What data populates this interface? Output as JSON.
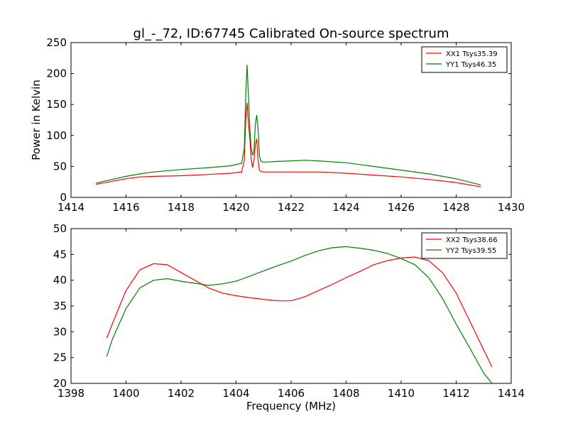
{
  "title": "gl_-_72, ID:67745 Calibrated On-source spectrum",
  "chart_data": [
    {
      "type": "line",
      "ylabel": "Power in Kelvin",
      "xlabel": "",
      "xlim": [
        1414,
        1430
      ],
      "ylim": [
        0,
        250
      ],
      "xticks": [
        1414,
        1416,
        1418,
        1420,
        1422,
        1424,
        1426,
        1428,
        1430
      ],
      "yticks": [
        0,
        50,
        100,
        150,
        200,
        250
      ],
      "legend_position": "top-right",
      "series": [
        {
          "name": "XX1 Tsys35.39",
          "color": "#ff0000",
          "x": [
            1414.9,
            1415.5,
            1416.0,
            1416.5,
            1417.0,
            1418.0,
            1419.0,
            1419.8,
            1420.2,
            1420.3,
            1420.35,
            1420.4,
            1420.45,
            1420.5,
            1420.55,
            1420.6,
            1420.65,
            1420.7,
            1420.75,
            1420.8,
            1420.85,
            1420.9,
            1421.0,
            1421.5,
            1422.0,
            1423.0,
            1424.0,
            1425.0,
            1426.0,
            1427.0,
            1428.0,
            1428.9
          ],
          "y": [
            21,
            26,
            30,
            33,
            34,
            35,
            37,
            39,
            41,
            60,
            125,
            153,
            120,
            95,
            62,
            48,
            60,
            85,
            95,
            60,
            44,
            42,
            41,
            41,
            41,
            41,
            39,
            36,
            33,
            29,
            24,
            17
          ]
        },
        {
          "name": "YY1 Tsys46.35",
          "color": "#008000",
          "x": [
            1414.9,
            1415.5,
            1416.0,
            1416.5,
            1417.0,
            1418.0,
            1419.0,
            1419.8,
            1420.2,
            1420.3,
            1420.35,
            1420.4,
            1420.45,
            1420.5,
            1420.55,
            1420.6,
            1420.65,
            1420.7,
            1420.75,
            1420.8,
            1420.85,
            1420.9,
            1421.0,
            1421.5,
            1422.0,
            1422.5,
            1423.0,
            1424.0,
            1425.0,
            1426.0,
            1427.0,
            1428.0,
            1428.9
          ],
          "y": [
            23,
            29,
            34,
            38,
            41,
            45,
            48,
            51,
            55,
            80,
            165,
            214,
            165,
            110,
            80,
            68,
            75,
            118,
            133,
            110,
            68,
            58,
            57,
            58,
            59,
            60,
            59,
            56,
            50,
            44,
            38,
            30,
            20
          ]
        }
      ]
    },
    {
      "type": "line",
      "xlabel": "Frequency (MHz)",
      "ylabel": "",
      "xlim": [
        1398,
        1414
      ],
      "ylim": [
        20,
        50
      ],
      "xticks": [
        1398,
        1400,
        1402,
        1404,
        1406,
        1408,
        1410,
        1412,
        1414
      ],
      "yticks": [
        20,
        25,
        30,
        35,
        40,
        45,
        50
      ],
      "legend_position": "top-right",
      "series": [
        {
          "name": "XX2 Tsys38.66",
          "color": "#ff0000",
          "x": [
            1399.3,
            1399.5,
            1400.0,
            1400.5,
            1401.0,
            1401.5,
            1402.0,
            1402.5,
            1403.0,
            1403.5,
            1404.0,
            1404.5,
            1405.0,
            1405.5,
            1406.0,
            1406.5,
            1407.0,
            1407.5,
            1408.0,
            1408.5,
            1409.0,
            1409.5,
            1410.0,
            1410.5,
            1411.0,
            1411.5,
            1412.0,
            1412.5,
            1413.0,
            1413.3
          ],
          "y": [
            28.8,
            31.5,
            38.0,
            42.0,
            43.2,
            43.0,
            41.5,
            40.0,
            38.5,
            37.5,
            37.0,
            36.6,
            36.3,
            36.0,
            36.0,
            36.8,
            38.0,
            39.2,
            40.5,
            41.7,
            43.0,
            43.8,
            44.3,
            44.5,
            43.8,
            41.5,
            37.5,
            32.0,
            26.5,
            23.2
          ]
        },
        {
          "name": "YY2 Tsys39.55",
          "color": "#008000",
          "x": [
            1399.3,
            1399.5,
            1400.0,
            1400.5,
            1401.0,
            1401.5,
            1402.0,
            1402.5,
            1403.0,
            1403.5,
            1404.0,
            1404.5,
            1405.0,
            1405.5,
            1406.0,
            1406.5,
            1407.0,
            1407.5,
            1408.0,
            1408.5,
            1409.0,
            1409.5,
            1410.0,
            1410.5,
            1411.0,
            1411.5,
            1412.0,
            1412.5,
            1413.0,
            1413.3
          ],
          "y": [
            25.2,
            28.5,
            34.5,
            38.5,
            40.0,
            40.3,
            39.8,
            39.4,
            39.0,
            39.3,
            39.8,
            40.8,
            41.8,
            42.8,
            43.7,
            44.8,
            45.7,
            46.3,
            46.5,
            46.2,
            45.8,
            45.2,
            44.2,
            43.0,
            40.5,
            36.5,
            31.5,
            26.8,
            22.0,
            20.0
          ]
        }
      ]
    }
  ]
}
